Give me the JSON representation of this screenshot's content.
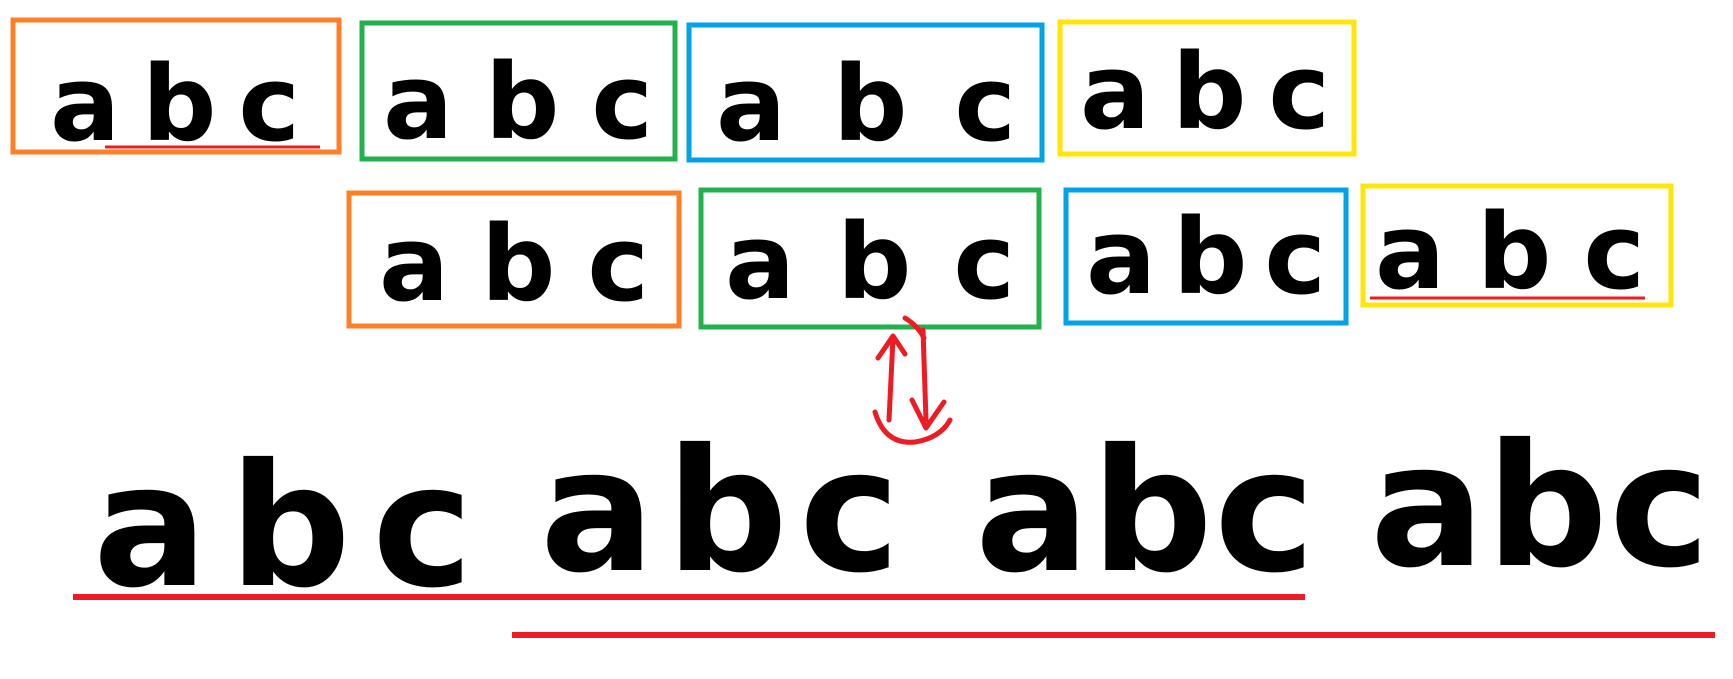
{
  "colors": {
    "orange": "#ff7f27",
    "green": "#22b14c",
    "blue": "#00a2e8",
    "yellow": "#ffe60a",
    "red": "#ed1c24",
    "ink": "#000000"
  },
  "rows": {
    "top": [
      {
        "text": "a b c",
        "color": "orange",
        "underlined": true
      },
      {
        "text": "a b c",
        "color": "green",
        "underlined": false
      },
      {
        "text": "a b c",
        "color": "blue",
        "underlined": false
      },
      {
        "text": "a b c",
        "color": "yellow",
        "underlined": false
      }
    ],
    "middle": [
      {
        "text": "a b c",
        "color": "orange",
        "underlined": false
      },
      {
        "text": "a b c",
        "color": "green",
        "underlined": false
      },
      {
        "text": "a b c",
        "color": "blue",
        "underlined": false
      },
      {
        "text": "a b c",
        "color": "yellow",
        "underlined": true
      }
    ]
  },
  "bottom_sequence": {
    "groups": [
      "a b c",
      "a b c",
      "a b c",
      "a b c"
    ],
    "underline_spans": [
      "groups 1-3",
      "groups 2-4"
    ]
  },
  "arrow": {
    "description_icon": "bidirectional-arrow-icon",
    "color": "red"
  }
}
